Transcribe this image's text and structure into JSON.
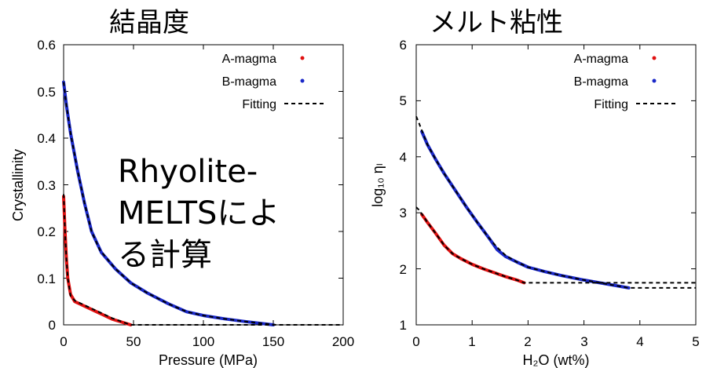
{
  "chart_data": [
    {
      "type": "line",
      "title": "結晶度",
      "xlabel": "Pressure (MPa)",
      "ylabel": "Crystallinity",
      "xlim": [
        0,
        200
      ],
      "ylim": [
        0,
        0.6
      ],
      "xticks": [
        0,
        50,
        100,
        150,
        200
      ],
      "yticks": [
        0,
        0.1,
        0.2,
        0.3,
        0.4,
        0.5,
        0.6
      ],
      "xtick_labels": [
        "0",
        "50",
        "100",
        "150",
        "200"
      ],
      "ytick_labels": [
        "0",
        "0.1",
        "0.2",
        "0.3",
        "0.4",
        "0.5",
        "0.6"
      ],
      "annotation": [
        "Rhyolite-",
        "MELTSによ",
        "る計算"
      ],
      "legend_position": "top-right",
      "grid": false,
      "series": [
        {
          "name": "A-magma",
          "color": "#e01010",
          "style": "thick-line",
          "x": [
            0,
            1,
            2,
            3,
            5,
            8,
            15,
            25,
            35,
            48
          ],
          "y": [
            0.275,
            0.2,
            0.14,
            0.1,
            0.065,
            0.05,
            0.04,
            0.026,
            0.012,
            0.0
          ]
        },
        {
          "name": "B-magma",
          "color": "#1a28c8",
          "style": "thick-line",
          "x": [
            0,
            2,
            5,
            10,
            15,
            20,
            27,
            37,
            48,
            60,
            75,
            88,
            100,
            115,
            130,
            150
          ],
          "y": [
            0.52,
            0.47,
            0.41,
            0.33,
            0.26,
            0.2,
            0.155,
            0.12,
            0.09,
            0.068,
            0.045,
            0.028,
            0.02,
            0.013,
            0.007,
            0.0
          ]
        },
        {
          "name": "Fitting",
          "color": "#000000",
          "style": "dashed",
          "segments": [
            {
              "x": [
                0,
                1,
                2,
                3,
                5,
                8,
                15,
                25,
                35,
                48,
                200
              ],
              "y": [
                0.28,
                0.2,
                0.14,
                0.1,
                0.062,
                0.052,
                0.042,
                0.028,
                0.014,
                0.0,
                0.0
              ]
            },
            {
              "x": [
                0,
                2,
                5,
                10,
                15,
                20,
                26,
                37,
                48,
                60,
                75,
                88,
                100,
                115,
                130,
                152
              ],
              "y": [
                0.52,
                0.47,
                0.41,
                0.33,
                0.26,
                0.2,
                0.16,
                0.12,
                0.09,
                0.068,
                0.045,
                0.028,
                0.02,
                0.013,
                0.007,
                0.0
              ]
            }
          ]
        }
      ]
    },
    {
      "type": "line",
      "title": "メルト粘性",
      "xlabel": "H₂O (wt%)",
      "ylabel": "log₁₀ ηₗ",
      "xlim": [
        0,
        5
      ],
      "ylim": [
        1,
        6
      ],
      "xticks": [
        0,
        1,
        2,
        3,
        4,
        5
      ],
      "yticks": [
        1,
        2,
        3,
        4,
        5,
        6
      ],
      "xtick_labels": [
        "0",
        "1",
        "2",
        "3",
        "4",
        "5"
      ],
      "ytick_labels": [
        "1",
        "2",
        "3",
        "4",
        "5",
        "6"
      ],
      "legend_position": "top-right",
      "grid": false,
      "series": [
        {
          "name": "A-magma",
          "color": "#e01010",
          "style": "thick-line",
          "x": [
            0.1,
            0.2,
            0.35,
            0.5,
            0.65,
            0.8,
            1.0,
            1.2,
            1.4,
            1.6,
            1.8,
            1.93
          ],
          "y": [
            2.97,
            2.83,
            2.63,
            2.42,
            2.27,
            2.18,
            2.08,
            2.0,
            1.93,
            1.86,
            1.8,
            1.75
          ]
        },
        {
          "name": "B-magma",
          "color": "#1a28c8",
          "style": "thick-line",
          "x": [
            0.1,
            0.2,
            0.35,
            0.5,
            0.7,
            0.9,
            1.1,
            1.3,
            1.45,
            1.6,
            1.8,
            2.0,
            2.3,
            2.6,
            3.0,
            3.4,
            3.8
          ],
          "y": [
            4.45,
            4.22,
            3.95,
            3.7,
            3.4,
            3.1,
            2.82,
            2.55,
            2.34,
            2.22,
            2.12,
            2.03,
            1.95,
            1.88,
            1.8,
            1.73,
            1.66
          ]
        },
        {
          "name": "Fitting",
          "color": "#000000",
          "style": "dashed",
          "segments": [
            {
              "x": [
                0.0,
                0.05,
                0.1,
                0.2,
                0.35,
                0.5,
                0.65,
                0.8,
                1.0,
                1.2,
                1.4,
                1.6,
                1.8,
                1.93,
                5.0
              ],
              "y": [
                3.1,
                3.05,
                2.98,
                2.83,
                2.63,
                2.42,
                2.27,
                2.18,
                2.08,
                2.0,
                1.93,
                1.86,
                1.8,
                1.75,
                1.75
              ]
            },
            {
              "x": [
                0.0,
                0.05,
                0.1,
                0.2,
                0.35,
                0.5,
                0.7,
                0.9,
                1.1,
                1.3,
                1.45,
                1.6,
                1.8,
                2.0,
                2.3,
                2.6,
                3.0,
                3.4,
                3.8,
                5.0
              ],
              "y": [
                4.72,
                4.6,
                4.47,
                4.22,
                3.95,
                3.7,
                3.4,
                3.1,
                2.82,
                2.55,
                2.38,
                2.24,
                2.12,
                2.03,
                1.95,
                1.88,
                1.8,
                1.73,
                1.66,
                1.66
              ]
            }
          ]
        }
      ]
    }
  ]
}
